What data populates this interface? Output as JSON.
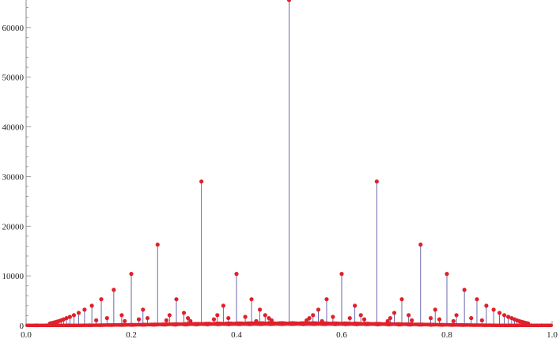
{
  "chart_data": {
    "type": "scatter",
    "style": "stem",
    "title": "",
    "xlabel": "",
    "ylabel": "",
    "xlim": [
      0.0,
      1.0
    ],
    "ylim": [
      0,
      65536
    ],
    "x_ticks": [
      "0.0",
      "0.2",
      "0.4",
      "0.6",
      "0.8",
      "1.0"
    ],
    "y_ticks": [
      "0",
      "10000",
      "20000",
      "30000",
      "40000",
      "50000",
      "60000"
    ],
    "grid": false,
    "legend": "none",
    "colors": {
      "marker": "#e0202a",
      "stem": "#5a5aa8",
      "axis": "#888888"
    },
    "series": [
      {
        "points": [
          [
            0.5,
            65536
          ],
          [
            0.3333,
            29000
          ],
          [
            0.6667,
            29000
          ],
          [
            0.25,
            16300
          ],
          [
            0.75,
            16300
          ],
          [
            0.2,
            10400
          ],
          [
            0.4,
            10400
          ],
          [
            0.6,
            10400
          ],
          [
            0.8,
            10400
          ],
          [
            0.1667,
            7200
          ],
          [
            0.8333,
            7200
          ],
          [
            0.1429,
            5300
          ],
          [
            0.2857,
            5300
          ],
          [
            0.4286,
            5300
          ],
          [
            0.5714,
            5300
          ],
          [
            0.7143,
            5300
          ],
          [
            0.8571,
            5300
          ],
          [
            0.125,
            4000
          ],
          [
            0.375,
            4000
          ],
          [
            0.625,
            4000
          ],
          [
            0.875,
            4000
          ],
          [
            0.1111,
            3200
          ],
          [
            0.2222,
            3200
          ],
          [
            0.4444,
            3200
          ],
          [
            0.5556,
            3200
          ],
          [
            0.7778,
            3200
          ],
          [
            0.8889,
            3200
          ],
          [
            0.1,
            2550
          ],
          [
            0.3,
            2550
          ],
          [
            0.7,
            2550
          ],
          [
            0.9,
            2550
          ],
          [
            0.0909,
            2100
          ],
          [
            0.1818,
            2100
          ],
          [
            0.2727,
            2100
          ],
          [
            0.3636,
            2100
          ],
          [
            0.4545,
            2100
          ],
          [
            0.5455,
            2100
          ],
          [
            0.6364,
            2100
          ],
          [
            0.7273,
            2100
          ],
          [
            0.8182,
            2100
          ],
          [
            0.9091,
            2100
          ],
          [
            0.0833,
            1750
          ],
          [
            0.4167,
            1750
          ],
          [
            0.5833,
            1750
          ],
          [
            0.9167,
            1750
          ],
          [
            0.0769,
            1500
          ],
          [
            0.1538,
            1500
          ],
          [
            0.2308,
            1500
          ],
          [
            0.3077,
            1500
          ],
          [
            0.3846,
            1500
          ],
          [
            0.4615,
            1500
          ],
          [
            0.5385,
            1500
          ],
          [
            0.6154,
            1500
          ],
          [
            0.6923,
            1500
          ],
          [
            0.7692,
            1500
          ],
          [
            0.8462,
            1500
          ],
          [
            0.9231,
            1500
          ],
          [
            0.0714,
            1250
          ],
          [
            0.2143,
            1250
          ],
          [
            0.3571,
            1250
          ],
          [
            0.6429,
            1250
          ],
          [
            0.7857,
            1250
          ],
          [
            0.9286,
            1250
          ],
          [
            0.0667,
            1050
          ],
          [
            0.1333,
            1050
          ],
          [
            0.2667,
            1050
          ],
          [
            0.4667,
            1050
          ],
          [
            0.5333,
            1050
          ],
          [
            0.7333,
            1050
          ],
          [
            0.8667,
            1050
          ],
          [
            0.9333,
            1050
          ],
          [
            0.0625,
            900
          ],
          [
            0.1875,
            900
          ],
          [
            0.3125,
            900
          ],
          [
            0.4375,
            900
          ],
          [
            0.5625,
            900
          ],
          [
            0.6875,
            900
          ],
          [
            0.8125,
            900
          ],
          [
            0.9375,
            900
          ],
          [
            0.0588,
            780
          ],
          [
            0.0556,
            680
          ],
          [
            0.0526,
            600
          ],
          [
            0.05,
            530
          ],
          [
            0.0476,
            470
          ],
          [
            0.0455,
            420
          ],
          [
            0.9412,
            780
          ],
          [
            0.9444,
            680
          ],
          [
            0.9474,
            600
          ],
          [
            0.95,
            530
          ],
          [
            0.9524,
            470
          ],
          [
            0.9545,
            420
          ]
        ]
      }
    ]
  }
}
